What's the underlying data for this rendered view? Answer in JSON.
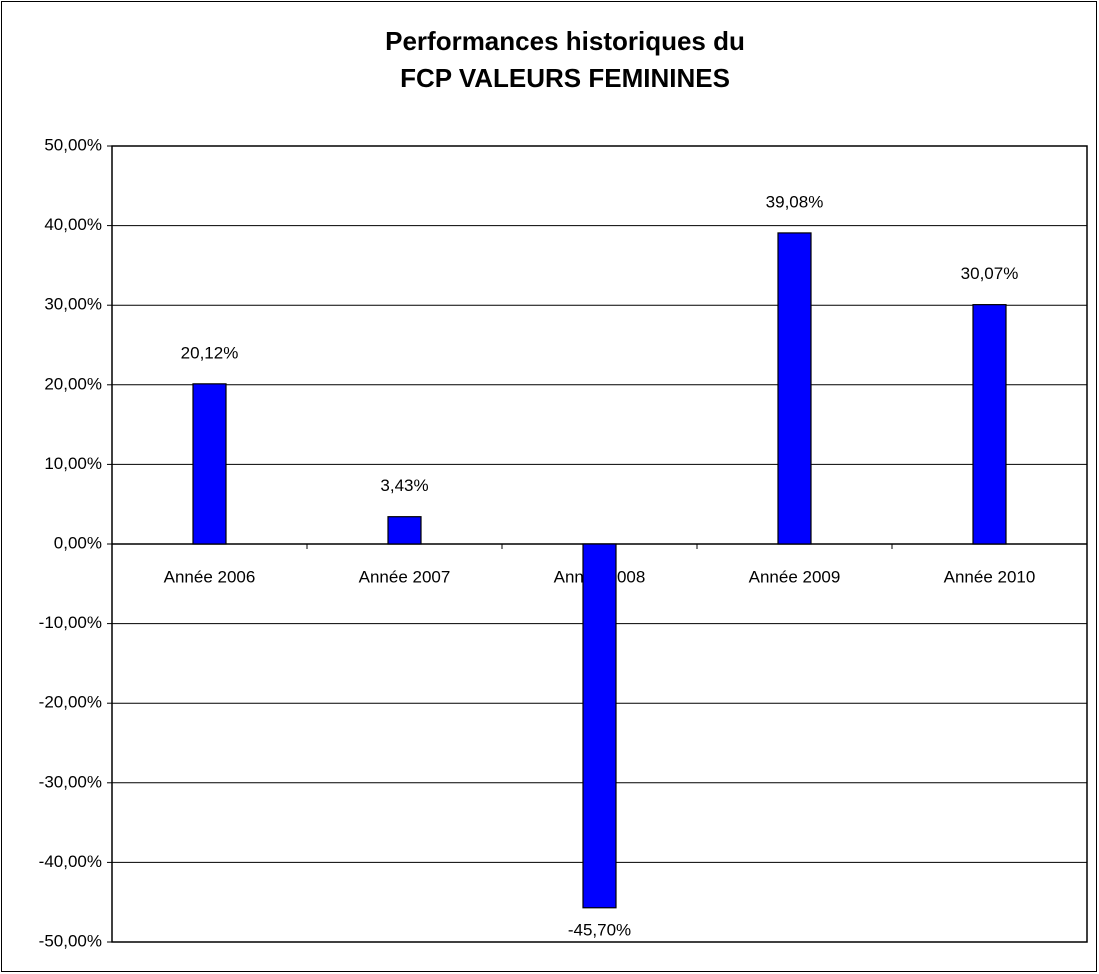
{
  "chart_data": {
    "type": "bar",
    "title": [
      "Performances historiques du",
      "FCP VALEURS FEMININES"
    ],
    "categories": [
      "Année 2006",
      "Année 2007",
      "Année 2008",
      "Année 2009",
      "Année 2010"
    ],
    "values": [
      20.12,
      3.43,
      -45.7,
      39.08,
      30.07
    ],
    "value_labels": [
      "20,12%",
      "3,43%",
      "-45,70%",
      "39,08%",
      "30,07%"
    ],
    "color": "#0000ff",
    "ylim": [
      -50,
      50
    ],
    "yticks": [
      {
        "value": -50,
        "label": "-50,00%"
      },
      {
        "value": -40,
        "label": "-40,00%"
      },
      {
        "value": -30,
        "label": "-30,00%"
      },
      {
        "value": -20,
        "label": "-20,00%"
      },
      {
        "value": -10,
        "label": "-10,00%"
      },
      {
        "value": 0,
        "label": "0,00%"
      },
      {
        "value": 10,
        "label": "10,00%"
      },
      {
        "value": 20,
        "label": "20,00%"
      },
      {
        "value": 30,
        "label": "30,00%"
      },
      {
        "value": 40,
        "label": "40,00%"
      },
      {
        "value": 50,
        "label": "50,00%"
      }
    ],
    "grid": true
  }
}
